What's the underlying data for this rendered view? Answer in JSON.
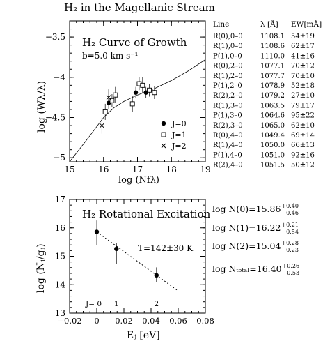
{
  "page_title": "H₂ in the Magellanic Stream",
  "chart_data": [
    {
      "type": "scatter",
      "panel": "curve-of-growth",
      "title": "H₂  Curve of Growth",
      "subtitle": "b=5.0 km s⁻¹",
      "xlabel": "log (Nfλ)",
      "ylabel": "log (Wλ/λ)",
      "xlim": [
        15,
        19
      ],
      "ylim": [
        -5.05,
        -3.3
      ],
      "x_ticks": [
        "15",
        "16",
        "17",
        "18",
        "19"
      ],
      "y_ticks": [
        "-5",
        "-4.5",
        "-4",
        "-3.5"
      ],
      "legend": [
        "J=0",
        "J=1",
        "J=2"
      ],
      "legend_position": "lower-right",
      "curve": [
        [
          15.0,
          -5.05
        ],
        [
          15.5,
          -4.78
        ],
        [
          16.0,
          -4.5
        ],
        [
          16.3,
          -4.38
        ],
        [
          16.6,
          -4.3
        ],
        [
          17.0,
          -4.22
        ],
        [
          17.5,
          -4.14
        ],
        [
          18.0,
          -4.04
        ],
        [
          18.5,
          -3.92
        ],
        [
          19.0,
          -3.78
        ]
      ],
      "series": [
        {
          "name": "J=0",
          "marker": "filled-circle",
          "points": [
            {
              "x": 16.15,
              "y": -4.32,
              "yerr": 0.07
            },
            {
              "x": 16.95,
              "y": -4.19,
              "yerr": 0.07
            },
            {
              "x": 17.25,
              "y": -4.19,
              "yerr": 0.07
            }
          ]
        },
        {
          "name": "J=1",
          "marker": "open-square",
          "points": [
            {
              "x": 16.05,
              "y": -4.43,
              "yerr": 0.1
            },
            {
              "x": 16.25,
              "y": -4.29,
              "yerr": 0.08
            },
            {
              "x": 16.35,
              "y": -4.22,
              "yerr": 0.1
            },
            {
              "x": 16.85,
              "y": -4.33,
              "yerr": 0.1
            },
            {
              "x": 17.05,
              "y": -4.08,
              "yerr": 0.08
            },
            {
              "x": 17.15,
              "y": -4.1,
              "yerr": 0.1
            },
            {
              "x": 17.35,
              "y": -4.16,
              "yerr": 0.08
            },
            {
              "x": 17.5,
              "y": -4.19,
              "yerr": 0.08
            }
          ]
        },
        {
          "name": "J=2",
          "marker": "cross",
          "points": [
            {
              "x": 15.95,
              "y": -4.6,
              "yerr": 0.1
            },
            {
              "x": 16.15,
              "y": -4.25,
              "yerr": 0.1
            }
          ]
        }
      ]
    },
    {
      "type": "scatter",
      "panel": "rotational-excitation",
      "title": "H₂  Rotational Excitation",
      "annotation": "T=142±30 K",
      "xlabel": "Eⱼ [eV]",
      "ylabel": "log (Nⱼ/gⱼ)",
      "xlim": [
        -0.02,
        0.08
      ],
      "ylim": [
        13,
        17
      ],
      "x_ticks": [
        "-0.02",
        "0",
        "0.02",
        "0.04",
        "0.06",
        "0.08"
      ],
      "y_ticks": [
        "13",
        "14",
        "15",
        "16",
        "17"
      ],
      "level_labels": [
        "J= 0",
        "1",
        "2"
      ],
      "points": [
        {
          "x": 0.0,
          "y": 15.86,
          "yerr_up": 0.4,
          "yerr_down": 0.46
        },
        {
          "x": 0.0145,
          "y": 15.26,
          "yerr_up": 0.21,
          "yerr_down": 0.54
        },
        {
          "x": 0.044,
          "y": 14.33,
          "yerr_up": 0.28,
          "yerr_down": 0.23
        }
      ],
      "fit_line": [
        [
          0.0,
          15.86
        ],
        [
          0.06,
          13.78
        ]
      ]
    },
    {
      "type": "table",
      "panel": "line-table",
      "columns": [
        "Line",
        "λ [Å]",
        "EW[mÅ]"
      ],
      "rows": [
        [
          "R(0),0–0",
          "1108.1",
          "54±19"
        ],
        [
          "R(1),0–0",
          "1108.6",
          "62±17"
        ],
        [
          "P(1),0–0",
          "1110.0",
          "41±16"
        ],
        [
          "R(0),2–0",
          "1077.1",
          "70±12"
        ],
        [
          "R(1),2–0",
          "1077.7",
          "70±10"
        ],
        [
          "P(1),2–0",
          "1078.9",
          "52±18"
        ],
        [
          "R(2),2–0",
          "1079.2",
          "27±10"
        ],
        [
          "R(1),3–0",
          "1063.5",
          "79±17"
        ],
        [
          "P(1),3–0",
          "1064.6",
          "95±22"
        ],
        [
          "R(2),3–0",
          "1065.0",
          "62±10"
        ],
        [
          "R(0),4–0",
          "1049.4",
          "69±14"
        ],
        [
          "R(1),4–0",
          "1050.0",
          "66±13"
        ],
        [
          "P(1),4–0",
          "1051.0",
          "92±16"
        ],
        [
          "R(2),4–0",
          "1051.5",
          "50±12"
        ]
      ]
    }
  ],
  "column_densities": [
    {
      "label": "log  N(0)=15.86",
      "sup": "+0.40",
      "sub": "−0.46"
    },
    {
      "label": "log  N(1)=16.22",
      "sup": "+0.21",
      "sub": "−0.54"
    },
    {
      "label": "log  N(2)=15.04",
      "sup": "+0.28",
      "sub": "−0.23"
    },
    {
      "label": "log  Nₜₒₜₐₗ=16.40",
      "sup": "+0.26",
      "sub": "−0.53"
    }
  ]
}
